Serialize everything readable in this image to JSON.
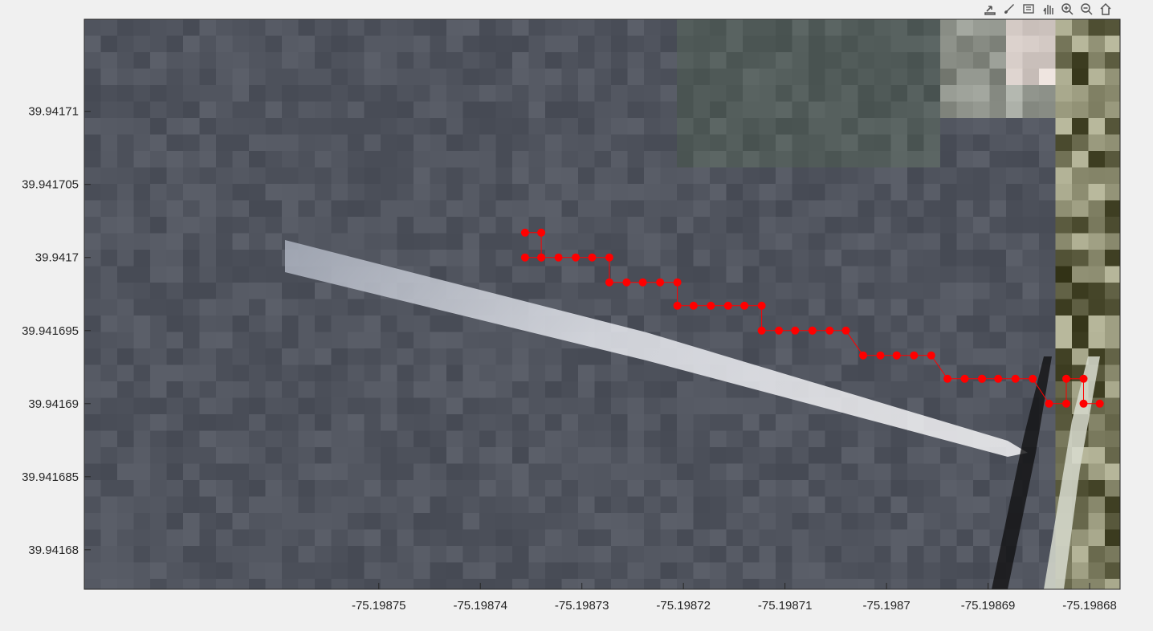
{
  "toolbar": {
    "buttons": [
      {
        "name": "export-icon"
      },
      {
        "name": "brush-icon"
      },
      {
        "name": "data-tips-icon"
      },
      {
        "name": "pan-icon"
      },
      {
        "name": "zoom-in-icon"
      },
      {
        "name": "zoom-out-icon"
      },
      {
        "name": "home-icon"
      }
    ]
  },
  "chart_data": {
    "type": "line",
    "title": "",
    "xlabel": "",
    "ylabel": "",
    "xlim": [
      -75.198779,
      -75.198677
    ],
    "ylim": [
      39.9416773,
      39.9417163
    ],
    "grid": false,
    "background": "satellite image",
    "series": [
      {
        "color": "#ff0000",
        "marker": "o",
        "x": [
          -75.1987356,
          -75.198734,
          -75.198734,
          -75.1987356,
          -75.198734,
          -75.1987323,
          -75.1987306,
          -75.198729,
          -75.1987273,
          -75.1987273,
          -75.1987256,
          -75.198724,
          -75.1987223,
          -75.1987206,
          -75.1987206,
          -75.198719,
          -75.1987173,
          -75.1987156,
          -75.198714,
          -75.1987123,
          -75.1987123,
          -75.1987106,
          -75.198709,
          -75.1987073,
          -75.1987073,
          -75.1987056,
          -75.198704,
          -75.1987023,
          -75.1987006,
          -75.198699,
          -75.198699,
          -75.1986973,
          -75.1986956,
          -75.198694,
          -75.1986923,
          -75.1986906,
          -75.1986906,
          -75.198689,
          -75.1986873,
          -75.1986856,
          -75.198684,
          -75.1986823,
          -75.1986823,
          -75.1986806,
          -75.1986806,
          -75.198679
        ],
        "y": [
          39.9417017,
          39.9417017,
          39.9417,
          39.9417,
          39.9417,
          39.9417,
          39.9417,
          39.9417,
          39.9417,
          39.9416983,
          39.9416983,
          39.9416983,
          39.9416983,
          39.9416983,
          39.9416967,
          39.9416967,
          39.9416967,
          39.9416967,
          39.9416967,
          39.9416967,
          39.941695,
          39.941695,
          39.941695,
          39.941695,
          39.941695,
          39.941695,
          39.941695,
          39.9416933,
          39.9416933,
          39.9416933,
          39.9416933,
          39.9416933,
          39.9416933,
          39.9416917,
          39.9416917,
          39.9416917,
          39.9416917,
          39.9416917,
          39.9416917,
          39.9416917,
          39.94169,
          39.94169,
          39.9416917,
          39.9416917,
          39.94169,
          39.94169
        ]
      }
    ],
    "xticks": [
      -75.19875,
      -75.19874,
      -75.19873,
      -75.19872,
      -75.19871,
      -75.1987,
      -75.19869,
      -75.19868
    ],
    "xtick_labels": [
      "-75.19875",
      "-75.19874",
      "-75.19873",
      "-75.19872",
      "-75.19871",
      "-75.1987",
      "-75.19869",
      "-75.19868"
    ],
    "yticks": [
      39.94171,
      39.941705,
      39.9417,
      39.941695,
      39.94169,
      39.941685,
      39.94168
    ],
    "ytick_labels": [
      "39.94171",
      "39.941705",
      "39.9417",
      "39.941695",
      "39.94169",
      "39.941685",
      "39.94168"
    ]
  }
}
